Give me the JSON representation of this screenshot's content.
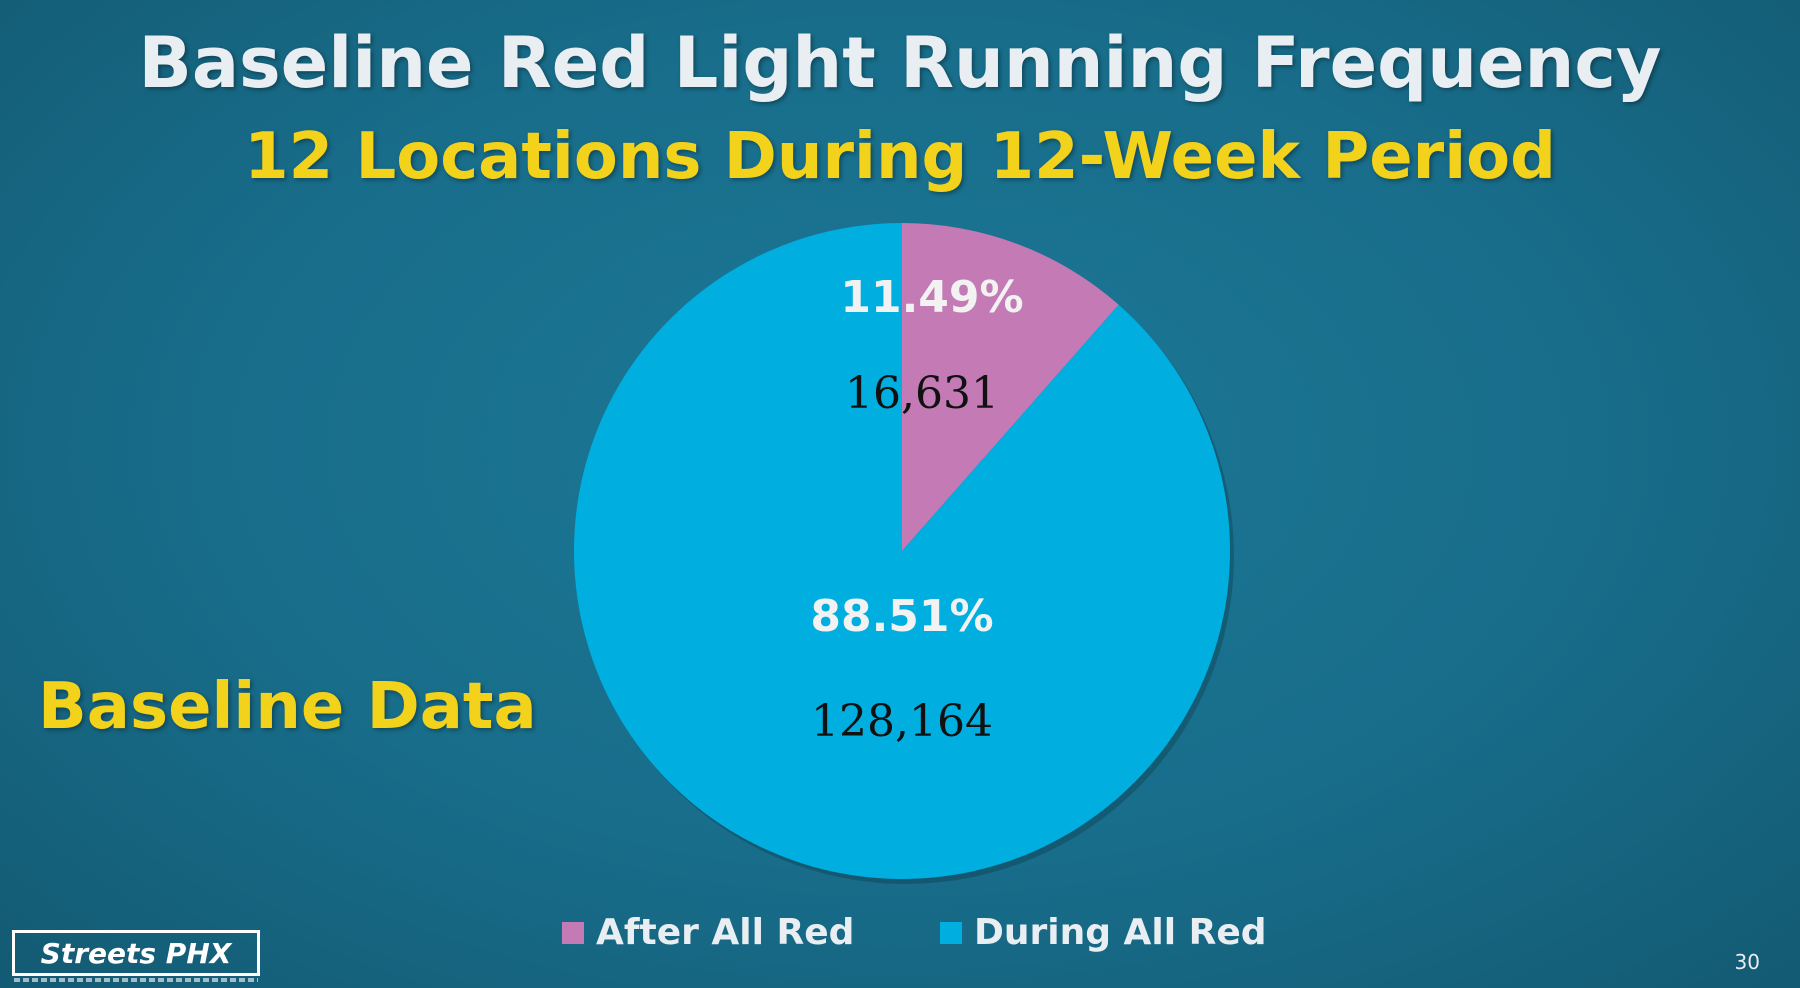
{
  "slide": {
    "title": "Baseline Red Light Running Frequency",
    "subtitle": "12 Locations During 12-Week Period",
    "side_label": "Baseline Data",
    "logo_text": "Streets PHX",
    "slide_number": "30"
  },
  "chart_data": {
    "type": "pie",
    "title": "",
    "start_angle_deg": 0,
    "direction": "clockwise",
    "slices": [
      {
        "label": "After All Red",
        "value": 16631,
        "value_label": "16,631",
        "percent_label": "11.49%",
        "color": "#c47bb5"
      },
      {
        "label": "During All Red",
        "value": 128164,
        "value_label": "128,164",
        "percent_label": "88.51%",
        "color": "#00aedf"
      }
    ],
    "legend_position": "bottom"
  }
}
